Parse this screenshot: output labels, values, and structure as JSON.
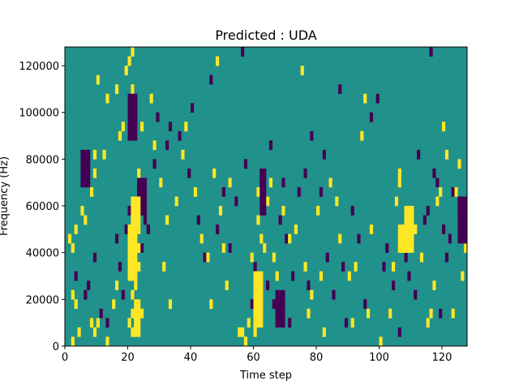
{
  "chart_data": {
    "type": "heatmap",
    "title": "Predicted : UDA",
    "xlabel": "Time step",
    "ylabel": "Frequency (Hz)",
    "xlim": [
      0,
      128
    ],
    "ylim": [
      0,
      128000
    ],
    "x_ticks": [
      0,
      20,
      40,
      60,
      80,
      100,
      120
    ],
    "y_ticks": [
      0,
      20000,
      40000,
      60000,
      80000,
      100000,
      120000
    ],
    "y_tick_labels": [
      "0",
      "20000",
      "40000",
      "60000",
      "80000",
      "100000",
      "120000"
    ],
    "grid": false,
    "legend": "none",
    "n_time_steps": 128,
    "n_freq_bins": 32,
    "freq_bin_hz": 4000,
    "colors": {
      "background_class": "#21918c",
      "class_high": "#fde725",
      "class_low": "#440154"
    },
    "background_value": 1,
    "cells_high_value": 2,
    "cells_low_value": 0,
    "cells_high": [
      [
        2,
        0
      ],
      [
        4,
        1
      ],
      [
        8,
        2
      ],
      [
        9,
        1
      ],
      [
        10,
        2
      ],
      [
        13,
        0
      ],
      [
        15,
        4
      ],
      [
        16,
        6
      ],
      [
        20,
        2
      ],
      [
        21,
        1
      ],
      [
        21,
        3
      ],
      [
        22,
        2
      ],
      [
        21,
        5
      ],
      [
        22,
        6
      ],
      [
        20,
        7
      ],
      [
        21,
        9
      ],
      [
        22,
        10
      ],
      [
        21,
        11
      ],
      [
        20,
        12
      ],
      [
        22,
        13
      ],
      [
        23,
        8
      ],
      [
        23,
        10
      ],
      [
        24,
        3
      ],
      [
        3,
        4
      ],
      [
        2,
        5
      ],
      [
        2,
        10
      ],
      [
        1,
        11
      ],
      [
        3,
        12
      ],
      [
        5,
        14
      ],
      [
        6,
        13
      ],
      [
        8,
        16
      ],
      [
        9,
        18
      ],
      [
        9,
        20
      ],
      [
        10,
        28
      ],
      [
        12,
        20
      ],
      [
        13,
        26
      ],
      [
        17,
        22
      ],
      [
        18,
        23
      ],
      [
        16,
        27
      ],
      [
        19,
        29
      ],
      [
        20,
        30
      ],
      [
        21,
        31
      ],
      [
        21,
        27
      ],
      [
        22,
        22
      ],
      [
        23,
        18
      ],
      [
        24,
        23
      ],
      [
        27,
        26
      ],
      [
        28,
        21
      ],
      [
        30,
        17
      ],
      [
        31,
        8
      ],
      [
        32,
        13
      ],
      [
        33,
        4
      ],
      [
        35,
        15
      ],
      [
        37,
        20
      ],
      [
        38,
        23
      ],
      [
        41,
        16
      ],
      [
        43,
        11
      ],
      [
        45,
        9
      ],
      [
        46,
        4
      ],
      [
        47,
        18
      ],
      [
        48,
        30
      ],
      [
        49,
        14
      ],
      [
        50,
        10
      ],
      [
        51,
        6
      ],
      [
        52,
        17
      ],
      [
        55,
        1
      ],
      [
        56,
        1
      ],
      [
        57,
        0
      ],
      [
        58,
        2
      ],
      [
        59,
        9
      ],
      [
        60,
        1
      ],
      [
        61,
        3
      ],
      [
        61,
        13
      ],
      [
        62,
        14
      ],
      [
        61,
        16
      ],
      [
        62,
        11
      ],
      [
        63,
        10
      ],
      [
        64,
        15
      ],
      [
        65,
        17
      ],
      [
        66,
        9
      ],
      [
        67,
        7
      ],
      [
        69,
        14
      ],
      [
        71,
        11
      ],
      [
        73,
        12
      ],
      [
        75,
        29
      ],
      [
        76,
        8
      ],
      [
        77,
        3
      ],
      [
        78,
        5
      ],
      [
        80,
        14
      ],
      [
        81,
        7
      ],
      [
        82,
        1
      ],
      [
        84,
        17
      ],
      [
        86,
        15
      ],
      [
        87,
        11
      ],
      [
        90,
        7
      ],
      [
        91,
        2
      ],
      [
        92,
        8
      ],
      [
        94,
        22
      ],
      [
        95,
        26
      ],
      [
        96,
        3
      ],
      [
        97,
        12
      ],
      [
        100,
        0
      ],
      [
        103,
        3
      ],
      [
        104,
        8
      ],
      [
        105,
        15
      ],
      [
        106,
        18
      ],
      [
        106,
        17
      ],
      [
        107,
        10
      ],
      [
        108,
        11
      ],
      [
        110,
        11
      ],
      [
        111,
        12
      ],
      [
        113,
        9
      ],
      [
        115,
        2
      ],
      [
        116,
        3
      ],
      [
        117,
        6
      ],
      [
        118,
        15
      ],
      [
        119,
        16
      ],
      [
        120,
        23
      ],
      [
        121,
        20
      ],
      [
        123,
        3
      ],
      [
        124,
        16
      ],
      [
        125,
        19
      ],
      [
        126,
        7
      ],
      [
        127,
        10
      ]
    ],
    "cells_low": [
      [
        3,
        7
      ],
      [
        6,
        5
      ],
      [
        7,
        6
      ],
      [
        9,
        9
      ],
      [
        11,
        3
      ],
      [
        13,
        2
      ],
      [
        16,
        11
      ],
      [
        17,
        8
      ],
      [
        18,
        5
      ],
      [
        19,
        12
      ],
      [
        20,
        14
      ],
      [
        22,
        15
      ],
      [
        23,
        16
      ],
      [
        24,
        10
      ],
      [
        25,
        13
      ],
      [
        26,
        12
      ],
      [
        28,
        19
      ],
      [
        29,
        24
      ],
      [
        30,
        17
      ],
      [
        32,
        21
      ],
      [
        33,
        23
      ],
      [
        36,
        22
      ],
      [
        39,
        18
      ],
      [
        40,
        25
      ],
      [
        42,
        13
      ],
      [
        44,
        9
      ],
      [
        46,
        28
      ],
      [
        48,
        12
      ],
      [
        50,
        16
      ],
      [
        52,
        10
      ],
      [
        54,
        15
      ],
      [
        56,
        31
      ],
      [
        57,
        19
      ],
      [
        59,
        4
      ],
      [
        60,
        8
      ],
      [
        62,
        2
      ],
      [
        63,
        10
      ],
      [
        64,
        6
      ],
      [
        65,
        21
      ],
      [
        66,
        4
      ],
      [
        67,
        3
      ],
      [
        68,
        13
      ],
      [
        69,
        17
      ],
      [
        70,
        11
      ],
      [
        71,
        2
      ],
      [
        72,
        7
      ],
      [
        74,
        16
      ],
      [
        76,
        18
      ],
      [
        77,
        6
      ],
      [
        78,
        22
      ],
      [
        81,
        16
      ],
      [
        82,
        20
      ],
      [
        83,
        9
      ],
      [
        85,
        5
      ],
      [
        87,
        27
      ],
      [
        88,
        8
      ],
      [
        89,
        2
      ],
      [
        91,
        14
      ],
      [
        93,
        11
      ],
      [
        95,
        4
      ],
      [
        97,
        24
      ],
      [
        99,
        26
      ],
      [
        101,
        8
      ],
      [
        102,
        10
      ],
      [
        104,
        6
      ],
      [
        106,
        1
      ],
      [
        108,
        9
      ],
      [
        109,
        7
      ],
      [
        111,
        5
      ],
      [
        112,
        20
      ],
      [
        114,
        13
      ],
      [
        115,
        14
      ],
      [
        116,
        31
      ],
      [
        117,
        18
      ],
      [
        118,
        17
      ],
      [
        119,
        3
      ],
      [
        120,
        12
      ],
      [
        121,
        9
      ],
      [
        122,
        11
      ],
      [
        123,
        16
      ],
      [
        125,
        14
      ]
    ],
    "blocks_high": [
      [
        20,
        7,
        22,
        12
      ],
      [
        106,
        10,
        110,
        12
      ],
      [
        60,
        2,
        62,
        7
      ],
      [
        22,
        1,
        23,
        4
      ],
      [
        21,
        12,
        23,
        15
      ],
      [
        108,
        12,
        110,
        14
      ]
    ],
    "blocks_low": [
      [
        23,
        14,
        25,
        17
      ],
      [
        5,
        17,
        7,
        20
      ],
      [
        20,
        22,
        22,
        26
      ],
      [
        62,
        14,
        63,
        18
      ],
      [
        67,
        2,
        69,
        5
      ],
      [
        125,
        11,
        127,
        15
      ]
    ]
  }
}
